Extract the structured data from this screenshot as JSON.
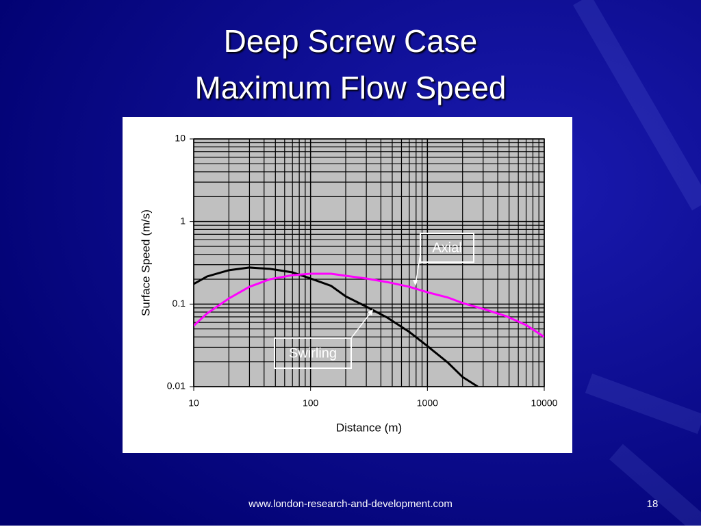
{
  "slide": {
    "title_lines": [
      "Deep Screw Case",
      "Maximum Flow Speed"
    ],
    "footer": "www.london-research-and-development.com",
    "page_number": "18"
  },
  "chart_data": {
    "type": "line",
    "x_label": "Distance (m)",
    "y_label": "Surface Speed (m/s)",
    "xlim": [
      10,
      10000
    ],
    "ylim": [
      0.01,
      10
    ],
    "xticks": [
      10,
      100,
      1000,
      10000
    ],
    "yticks": [
      0.01,
      0.1,
      1,
      10
    ],
    "x_log": true,
    "y_log": true,
    "grid": true,
    "minor_grid": true,
    "series": [
      {
        "name": "Swirling",
        "color": "#000000",
        "x": [
          10,
          13,
          20,
          30,
          45,
          70,
          100,
          150,
          200,
          300,
          450,
          700,
          1000,
          1500,
          2000,
          2700
        ],
        "values": [
          0.175,
          0.216,
          0.257,
          0.277,
          0.267,
          0.242,
          0.204,
          0.166,
          0.124,
          0.093,
          0.069,
          0.046,
          0.031,
          0.0195,
          0.0131,
          0.01
        ]
      },
      {
        "name": "Axial",
        "color": "#ff00ff",
        "x": [
          10,
          13,
          20,
          30,
          45,
          70,
          100,
          150,
          200,
          300,
          450,
          700,
          1000,
          1500,
          2000,
          3200,
          4700,
          7000,
          10000
        ],
        "values": [
          0.0547,
          0.077,
          0.117,
          0.162,
          0.2,
          0.224,
          0.233,
          0.233,
          0.22,
          0.204,
          0.185,
          0.162,
          0.139,
          0.12,
          0.103,
          0.085,
          0.0715,
          0.0557,
          0.04
        ]
      }
    ]
  }
}
